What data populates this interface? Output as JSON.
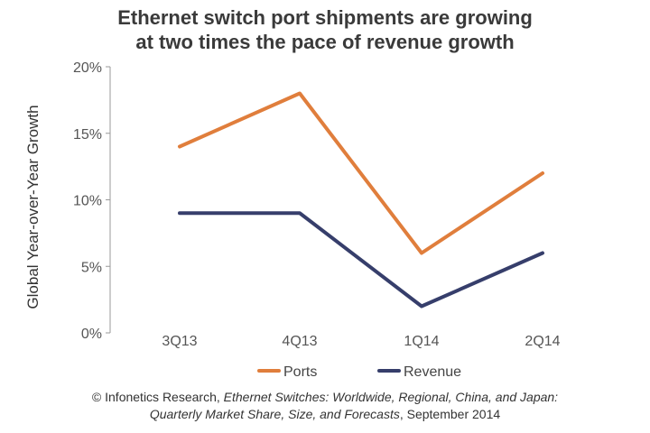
{
  "chart_data": {
    "type": "line",
    "title_line1": "Ethernet switch port shipments are growing",
    "title_line2": "at two times the pace of revenue growth",
    "xlabel": "",
    "ylabel": "Global Year-over-Year Growth",
    "categories": [
      "3Q13",
      "4Q13",
      "1Q14",
      "2Q14"
    ],
    "y_ticks": [
      "0%",
      "5%",
      "10%",
      "15%",
      "20%"
    ],
    "ylim": [
      0,
      20
    ],
    "grid": false,
    "legend_position": "bottom",
    "series": [
      {
        "name": "Ports",
        "values": [
          14,
          18,
          6,
          12
        ],
        "color": "#e07e3c"
      },
      {
        "name": "Revenue",
        "values": [
          9,
          9,
          2,
          6
        ],
        "color": "#363e6b"
      }
    ]
  },
  "footer": {
    "part1": "© Infonetics Research, ",
    "part2": "Ethernet Switches: Worldwide, Regional, China, and Japan:",
    "part3": "Quarterly Market Share, Size, and Forecasts",
    "part4": ", September 2014"
  }
}
